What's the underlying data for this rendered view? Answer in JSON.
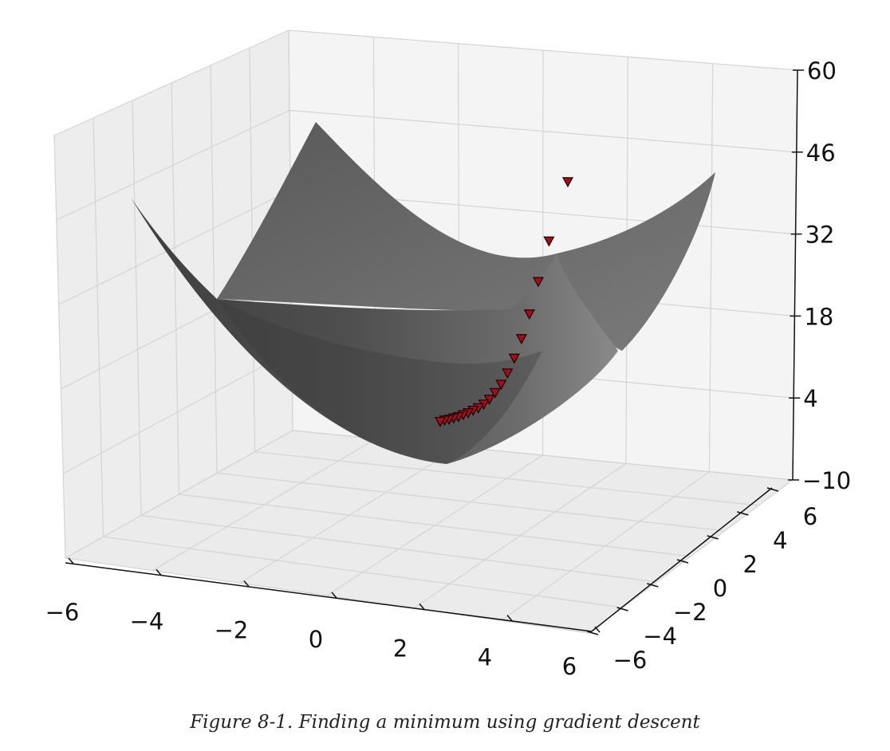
{
  "chart_data": {
    "type": "surface3d",
    "title": "",
    "surface": "x^2 + y^2 (paraboloid)",
    "x_ticks": [
      "−6",
      "−4",
      "−2",
      "0",
      "2",
      "4",
      "6"
    ],
    "y_ticks": [
      "−6",
      "−4",
      "−2",
      "0",
      "2",
      "4",
      "6"
    ],
    "z_ticks": [
      "−10",
      "4",
      "18",
      "32",
      "46",
      "60"
    ],
    "xlim": [
      -6,
      6
    ],
    "ylim": [
      -6,
      6
    ],
    "zlim": [
      -10,
      60
    ],
    "descent_path_z": [
      38.5,
      28.5,
      21.7,
      16.3,
      12.2,
      9.0,
      6.6,
      4.8,
      3.5,
      2.5,
      1.8,
      1.3,
      1.0,
      0.7,
      0.5,
      0.3,
      0.2,
      0.1,
      0.1,
      0.0
    ],
    "surface_color": "#6e6e6e",
    "marker_color": "#a0101a"
  },
  "caption": "Figure 8-1. Finding a minimum using gradient descent"
}
